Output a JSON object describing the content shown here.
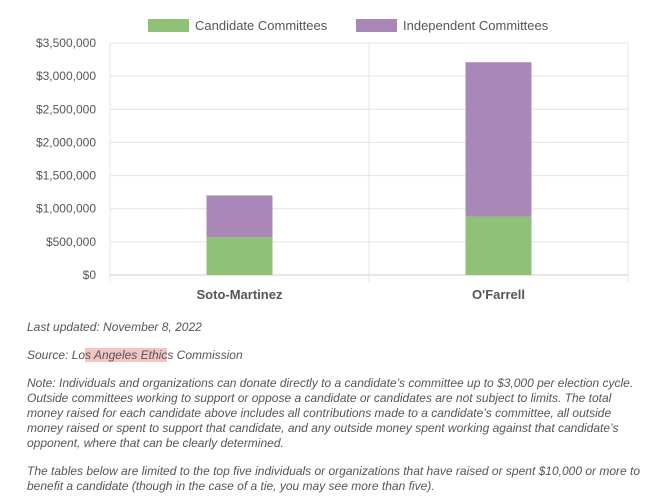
{
  "chart_data": {
    "type": "bar",
    "stacked": true,
    "categories": [
      "Soto-Martinez",
      "O'Farrell"
    ],
    "series": [
      {
        "name": "Candidate Committees",
        "values": [
          570000,
          880000
        ],
        "color": "#8fc176"
      },
      {
        "name": "Independent Committees",
        "values": [
          630000,
          2330000
        ],
        "color": "#a987b6"
      }
    ],
    "ylim": [
      0,
      3500000
    ],
    "yticks": [
      0,
      500000,
      1000000,
      1500000,
      2000000,
      2500000,
      3000000,
      3500000
    ],
    "ytick_labels": [
      "$0",
      "$500,000",
      "$1,000,000",
      "$1,500,000",
      "$2,000,000",
      "$2,500,000",
      "$3,000,000",
      "$3,500,000"
    ],
    "grid": true,
    "legend_position": "top-center"
  },
  "notes": {
    "last_updated": "Last updated: November 8, 2022",
    "source_prefix": "Source: Lo",
    "source_highlight": "s Angeles Ethic",
    "source_suffix": "s Commission",
    "note": "Note: Individuals and organizations can donate directly to a candidate’s committee up to $3,000 per election cycle. Outside committees working to support or oppose a candidate or candidates are not subject to limits. The total money raised for each candidate above includes all contributions made to a candidate’s committee, all outside money raised or spent to support that candidate, and any outside money spent working against that candidate’s opponent, where that can be clearly determined.",
    "tables_note": "The tables below are limited to the top five individuals or organizations that have raised or spent $10,000 or more to benefit a candidate (though in the case of a tie, you may see more than five)."
  }
}
